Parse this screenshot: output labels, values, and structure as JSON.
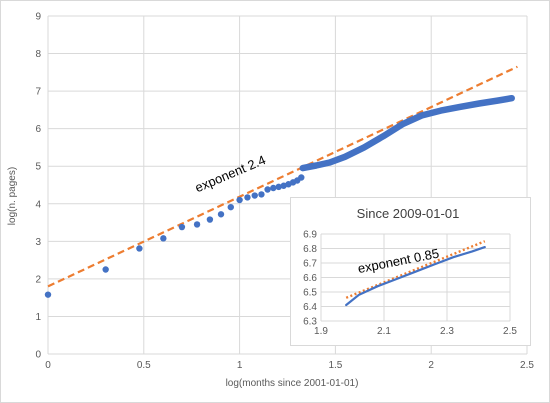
{
  "colors": {
    "series": "#4472c4",
    "fit": "#ed7d31"
  },
  "chart_data": [
    {
      "type": "scatter",
      "title": "",
      "xlabel": "log(months since 2001-01-01)",
      "ylabel": "log(n. pages)",
      "xlim": [
        0,
        2.5
      ],
      "ylim": [
        0,
        9
      ],
      "x_ticks": [
        "0",
        "0.5",
        "1",
        "1.5",
        "2",
        "2.5"
      ],
      "y_ticks": [
        "0",
        "1",
        "2",
        "3",
        "4",
        "5",
        "6",
        "7",
        "8",
        "9"
      ],
      "grid": true,
      "series": [
        {
          "kind": "points",
          "points": [
            [
              0,
              1.58
            ],
            [
              0.301,
              2.25
            ],
            [
              0.477,
              2.81
            ],
            [
              0.602,
              3.08
            ],
            [
              0.699,
              3.38
            ],
            [
              0.778,
              3.45
            ],
            [
              0.845,
              3.58
            ],
            [
              0.903,
              3.72
            ],
            [
              0.954,
              3.91
            ],
            [
              1.0,
              4.1
            ],
            [
              1.041,
              4.17
            ],
            [
              1.079,
              4.22
            ],
            [
              1.114,
              4.25
            ],
            [
              1.146,
              4.38
            ],
            [
              1.176,
              4.42
            ],
            [
              1.204,
              4.45
            ],
            [
              1.23,
              4.48
            ],
            [
              1.255,
              4.52
            ],
            [
              1.279,
              4.57
            ],
            [
              1.301,
              4.62
            ],
            [
              1.322,
              4.7
            ]
          ],
          "curve": [
            [
              1.33,
              4.95
            ],
            [
              1.4,
              5.02
            ],
            [
              1.47,
              5.1
            ],
            [
              1.55,
              5.25
            ],
            [
              1.65,
              5.5
            ],
            [
              1.75,
              5.8
            ],
            [
              1.85,
              6.12
            ],
            [
              1.95,
              6.35
            ],
            [
              2.05,
              6.48
            ],
            [
              2.15,
              6.58
            ],
            [
              2.25,
              6.67
            ],
            [
              2.35,
              6.75
            ],
            [
              2.42,
              6.81
            ]
          ]
        },
        {
          "kind": "dashed-line",
          "points": [
            [
              0,
              1.8
            ],
            [
              2.45,
              7.65
            ]
          ]
        }
      ],
      "annotations": [
        {
          "text": "exponent 2.4",
          "x": 0.78,
          "y": 4.3
        }
      ]
    },
    {
      "type": "line",
      "title": "Since 2009-01-01",
      "xlabel": "",
      "ylabel": "",
      "xlim": [
        1.9,
        2.5
      ],
      "ylim": [
        6.3,
        6.9
      ],
      "x_ticks": [
        "1.9",
        "2.1",
        "2.3",
        "2.5"
      ],
      "y_ticks": [
        "6.3",
        "6.4",
        "6.5",
        "6.6",
        "6.7",
        "6.8",
        "6.9"
      ],
      "grid": true,
      "series": [
        {
          "kind": "line",
          "points": [
            [
              1.98,
              6.41
            ],
            [
              2.02,
              6.48
            ],
            [
              2.08,
              6.54
            ],
            [
              2.14,
              6.59
            ],
            [
              2.2,
              6.64
            ],
            [
              2.26,
              6.69
            ],
            [
              2.32,
              6.74
            ],
            [
              2.38,
              6.78
            ],
            [
              2.42,
              6.81
            ]
          ]
        },
        {
          "kind": "dotted-line",
          "points": [
            [
              1.98,
              6.46
            ],
            [
              2.42,
              6.85
            ]
          ]
        }
      ],
      "annotations": [
        {
          "text": "exponent 0.85",
          "x": 2.02,
          "y": 6.63
        }
      ]
    }
  ]
}
